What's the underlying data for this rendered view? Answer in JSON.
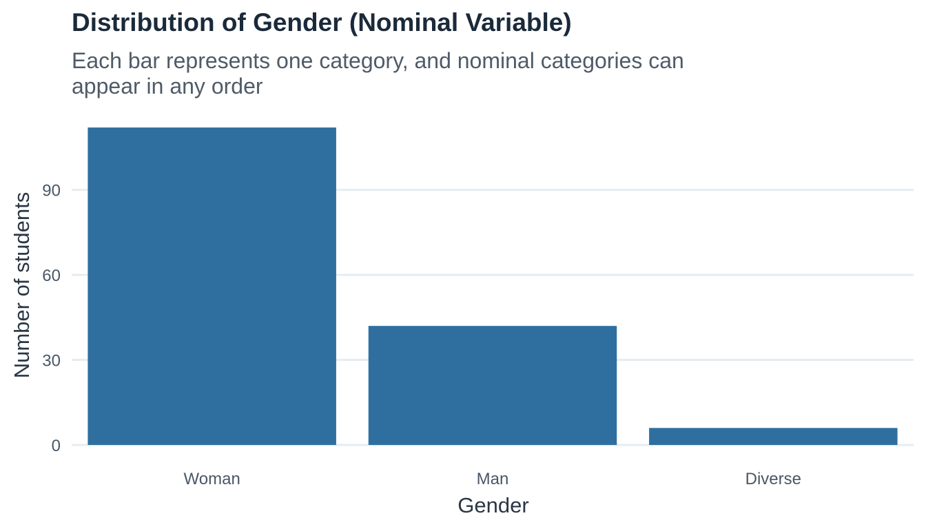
{
  "chart_data": {
    "type": "bar",
    "title": "Distribution of Gender (Nominal Variable)",
    "subtitle": "Each bar represents one category, and nominal categories can appear in any order",
    "xlabel": "Gender",
    "ylabel": "Number of students",
    "categories": [
      "Woman",
      "Man",
      "Diverse"
    ],
    "values": [
      112,
      42,
      6
    ],
    "ylim": [
      0,
      112
    ],
    "yticks": [
      0,
      30,
      60,
      90
    ],
    "ytick_labels": [
      "0",
      "30",
      "60",
      "90"
    ],
    "grid": true,
    "legend": "none",
    "colors": {
      "bar": "#2f6f9f",
      "grid": "#e6ecf1",
      "title": "#1b2a3a",
      "subtitle": "#4f5b68"
    }
  }
}
